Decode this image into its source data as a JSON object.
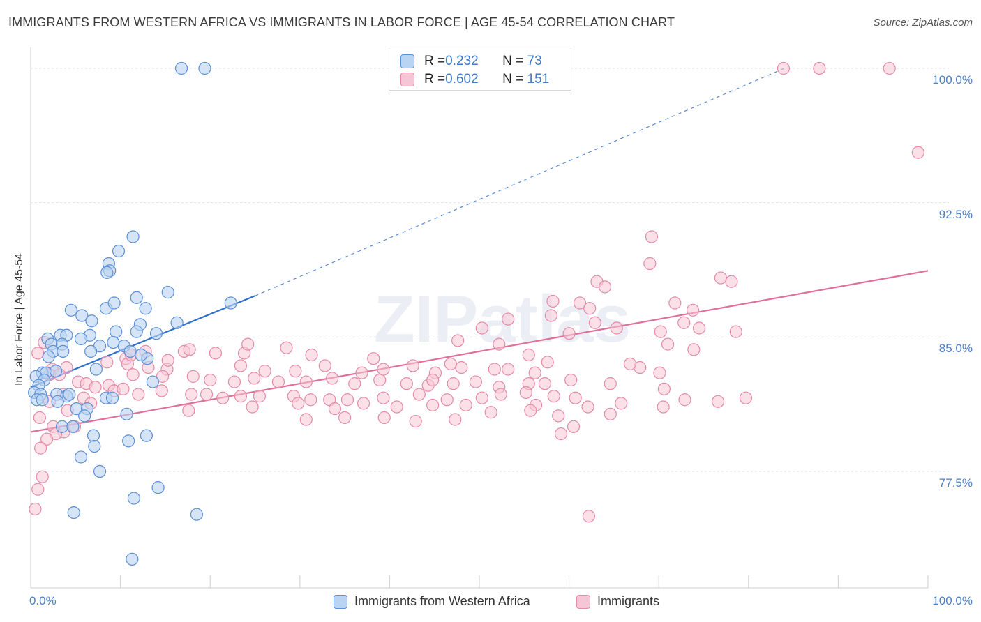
{
  "title": "IMMIGRANTS FROM WESTERN AFRICA VS IMMIGRANTS IN LABOR FORCE | AGE 45-54 CORRELATION CHART",
  "source": "Source: ZipAtlas.com",
  "watermark": "ZIPatlas",
  "colors": {
    "blue_fill": "#b9d3f2",
    "blue_stroke": "#5b8fd6",
    "blue_line": "#2f6fce",
    "pink_fill": "#f7c6d6",
    "pink_stroke": "#e58aa8",
    "pink_line": "#e0709a",
    "grid": "#e3e3e3",
    "tick_label": "#4a7fc8"
  },
  "stats": [
    {
      "r_label": "R = ",
      "r_value": "0.232",
      "n_label": "N = ",
      "n_value": "73",
      "series": "blue"
    },
    {
      "r_label": "R = ",
      "r_value": "0.602",
      "n_label": "N = ",
      "n_value": "151",
      "series": "pink"
    }
  ],
  "chart_data": {
    "type": "scatter",
    "title": "IMMIGRANTS FROM WESTERN AFRICA VS IMMIGRANTS IN LABOR FORCE | AGE 45-54 CORRELATION CHART",
    "xlabel": "",
    "ylabel": "In Labor Force | Age 45-54",
    "xlim": [
      0,
      100
    ],
    "ylim": [
      71.0,
      100.7
    ],
    "x_tick_labels": [
      "0.0%",
      "100.0%"
    ],
    "y_ticks": [
      77.5,
      85.0,
      92.5,
      100.0
    ],
    "y_tick_labels": [
      "77.5%",
      "85.0%",
      "92.5%",
      "100.0%"
    ],
    "legend": [
      "Immigrants from Western Africa",
      "Immigrants"
    ],
    "series": [
      {
        "name": "Immigrants from Western Africa",
        "color": "blue",
        "trend": {
          "x0": 0,
          "y0": 82.2,
          "x1": 25,
          "y1": 87.3,
          "dashed_x1": 84,
          "dashed_y1": 100.0
        },
        "points": [
          [
            16.8,
            100.0
          ],
          [
            19.4,
            100.0
          ],
          [
            11.4,
            90.6
          ],
          [
            8.7,
            89.1
          ],
          [
            8.8,
            88.7
          ],
          [
            8.5,
            88.6
          ],
          [
            9.8,
            89.8
          ],
          [
            15.3,
            87.5
          ],
          [
            22.3,
            86.9
          ],
          [
            11.8,
            87.2
          ],
          [
            8.4,
            86.6
          ],
          [
            9.3,
            86.9
          ],
          [
            12.8,
            86.6
          ],
          [
            4.5,
            86.5
          ],
          [
            5.7,
            86.2
          ],
          [
            6.8,
            85.9
          ],
          [
            12.2,
            85.7
          ],
          [
            9.5,
            85.3
          ],
          [
            11.8,
            85.3
          ],
          [
            3.3,
            85.1
          ],
          [
            4.0,
            85.1
          ],
          [
            6.6,
            85.1
          ],
          [
            5.6,
            84.9
          ],
          [
            1.9,
            84.9
          ],
          [
            2.3,
            84.6
          ],
          [
            3.5,
            84.6
          ],
          [
            7.7,
            84.5
          ],
          [
            10.4,
            84.5
          ],
          [
            2.5,
            84.2
          ],
          [
            3.6,
            84.2
          ],
          [
            6.7,
            84.2
          ],
          [
            11.1,
            84.2
          ],
          [
            2.0,
            83.9
          ],
          [
            13.0,
            83.8
          ],
          [
            1.3,
            83.0
          ],
          [
            1.7,
            83.0
          ],
          [
            2.8,
            83.1
          ],
          [
            7.3,
            83.2
          ],
          [
            0.6,
            82.8
          ],
          [
            1.5,
            82.6
          ],
          [
            13.6,
            82.5
          ],
          [
            0.9,
            82.3
          ],
          [
            0.4,
            81.9
          ],
          [
            1.1,
            81.8
          ],
          [
            2.9,
            81.8
          ],
          [
            4.0,
            81.7
          ],
          [
            4.3,
            81.8
          ],
          [
            8.4,
            81.6
          ],
          [
            9.1,
            81.6
          ],
          [
            0.7,
            81.5
          ],
          [
            1.3,
            81.5
          ],
          [
            3.0,
            81.4
          ],
          [
            5.1,
            81.0
          ],
          [
            6.3,
            81.0
          ],
          [
            10.7,
            80.7
          ],
          [
            3.5,
            80.0
          ],
          [
            4.7,
            80.0
          ],
          [
            7.0,
            79.5
          ],
          [
            10.9,
            79.2
          ],
          [
            12.9,
            79.5
          ],
          [
            7.1,
            78.9
          ],
          [
            5.6,
            78.3
          ],
          [
            7.7,
            77.5
          ],
          [
            14.2,
            76.6
          ],
          [
            11.5,
            76.0
          ],
          [
            4.8,
            75.2
          ],
          [
            18.5,
            75.1
          ],
          [
            11.3,
            72.6
          ],
          [
            16.3,
            85.8
          ],
          [
            14.0,
            85.2
          ],
          [
            9.2,
            84.7
          ],
          [
            12.3,
            84.0
          ],
          [
            6.0,
            80.6
          ]
        ]
      },
      {
        "name": "Immigrants",
        "color": "pink",
        "trend": {
          "x0": 0,
          "y0": 79.7,
          "x1": 100,
          "y1": 88.7
        },
        "points": [
          [
            83.9,
            100.0
          ],
          [
            87.9,
            100.0
          ],
          [
            95.7,
            100.0
          ],
          [
            98.9,
            95.3
          ],
          [
            69.2,
            90.6
          ],
          [
            69.0,
            89.1
          ],
          [
            76.9,
            88.3
          ],
          [
            63.1,
            88.1
          ],
          [
            64.0,
            87.8
          ],
          [
            78.1,
            88.1
          ],
          [
            58.2,
            87.0
          ],
          [
            61.2,
            86.9
          ],
          [
            62.3,
            86.6
          ],
          [
            71.8,
            86.9
          ],
          [
            73.8,
            86.5
          ],
          [
            58.0,
            86.2
          ],
          [
            53.2,
            86.0
          ],
          [
            62.9,
            85.8
          ],
          [
            72.8,
            85.8
          ],
          [
            50.3,
            85.5
          ],
          [
            65.3,
            85.5
          ],
          [
            70.2,
            85.3
          ],
          [
            74.5,
            85.5
          ],
          [
            60.0,
            85.2
          ],
          [
            78.6,
            85.3
          ],
          [
            47.6,
            84.8
          ],
          [
            52.2,
            84.6
          ],
          [
            71.0,
            84.6
          ],
          [
            73.9,
            84.3
          ],
          [
            0.8,
            84.1
          ],
          [
            1.5,
            84.7
          ],
          [
            17.1,
            84.2
          ],
          [
            8.5,
            83.6
          ],
          [
            10.6,
            83.8
          ],
          [
            10.8,
            83.5
          ],
          [
            13.1,
            83.3
          ],
          [
            2.4,
            83.2
          ],
          [
            4.0,
            83.3
          ],
          [
            2.1,
            82.9
          ],
          [
            3.2,
            82.9
          ],
          [
            5.3,
            82.5
          ],
          [
            6.2,
            82.4
          ],
          [
            15.2,
            83.2
          ],
          [
            18.1,
            82.8
          ],
          [
            8.7,
            82.3
          ],
          [
            11.4,
            82.9
          ],
          [
            14.7,
            82.8
          ],
          [
            20.0,
            82.6
          ],
          [
            22.7,
            82.5
          ],
          [
            24.9,
            82.7
          ],
          [
            27.6,
            82.5
          ],
          [
            30.7,
            82.5
          ],
          [
            33.6,
            82.7
          ],
          [
            36.1,
            82.4
          ],
          [
            38.9,
            82.6
          ],
          [
            41.9,
            82.4
          ],
          [
            44.3,
            82.3
          ],
          [
            47.1,
            82.4
          ],
          [
            49.6,
            82.5
          ],
          [
            52.2,
            82.2
          ],
          [
            55.5,
            82.4
          ],
          [
            57.3,
            82.4
          ],
          [
            60.2,
            82.6
          ],
          [
            64.6,
            82.4
          ],
          [
            67.9,
            83.3
          ],
          [
            70.1,
            83.0
          ],
          [
            23.4,
            83.4
          ],
          [
            26.1,
            83.1
          ],
          [
            29.5,
            83.1
          ],
          [
            32.8,
            83.4
          ],
          [
            36.9,
            83.0
          ],
          [
            39.3,
            83.2
          ],
          [
            42.6,
            83.4
          ],
          [
            45.1,
            83.0
          ],
          [
            48.0,
            83.3
          ],
          [
            51.7,
            83.2
          ],
          [
            53.2,
            83.2
          ],
          [
            56.2,
            83.0
          ],
          [
            66.8,
            83.5
          ],
          [
            57.6,
            83.6
          ],
          [
            55.5,
            84.0
          ],
          [
            38.2,
            83.8
          ],
          [
            31.3,
            84.0
          ],
          [
            23.8,
            84.1
          ],
          [
            20.6,
            84.1
          ],
          [
            15.3,
            83.7
          ],
          [
            17.7,
            84.3
          ],
          [
            12.8,
            84.2
          ],
          [
            11.2,
            84.0
          ],
          [
            24.2,
            84.6
          ],
          [
            28.5,
            84.4
          ],
          [
            9.3,
            82.0
          ],
          [
            7.2,
            82.2
          ],
          [
            10.3,
            82.1
          ],
          [
            3.6,
            81.8
          ],
          [
            5.9,
            81.6
          ],
          [
            2.1,
            81.4
          ],
          [
            12.0,
            81.8
          ],
          [
            14.6,
            82.0
          ],
          [
            17.9,
            81.8
          ],
          [
            19.6,
            81.8
          ],
          [
            21.4,
            81.6
          ],
          [
            23.4,
            81.7
          ],
          [
            25.5,
            81.7
          ],
          [
            29.3,
            81.7
          ],
          [
            31.2,
            81.5
          ],
          [
            33.3,
            81.5
          ],
          [
            35.3,
            81.5
          ],
          [
            39.3,
            81.6
          ],
          [
            43.3,
            81.8
          ],
          [
            46.4,
            81.5
          ],
          [
            50.3,
            81.6
          ],
          [
            52.4,
            81.8
          ],
          [
            55.2,
            81.9
          ],
          [
            58.3,
            81.7
          ],
          [
            60.7,
            81.6
          ],
          [
            6.7,
            81.3
          ],
          [
            1.0,
            80.5
          ],
          [
            4.1,
            80.9
          ],
          [
            17.6,
            80.9
          ],
          [
            24.7,
            81.1
          ],
          [
            29.8,
            81.3
          ],
          [
            33.9,
            81.0
          ],
          [
            37.1,
            81.3
          ],
          [
            40.8,
            81.1
          ],
          [
            44.8,
            81.2
          ],
          [
            48.5,
            81.2
          ],
          [
            56.3,
            81.2
          ],
          [
            62.1,
            81.1
          ],
          [
            65.8,
            81.3
          ],
          [
            70.5,
            81.1
          ],
          [
            76.6,
            81.4
          ],
          [
            79.7,
            81.6
          ],
          [
            30.7,
            80.4
          ],
          [
            35.0,
            80.5
          ],
          [
            39.4,
            80.5
          ],
          [
            42.9,
            80.3
          ],
          [
            47.3,
            80.4
          ],
          [
            51.3,
            80.8
          ],
          [
            55.7,
            80.9
          ],
          [
            58.8,
            80.6
          ],
          [
            60.5,
            80.0
          ],
          [
            64.6,
            80.7
          ],
          [
            70.6,
            82.1
          ],
          [
            72.9,
            81.5
          ],
          [
            2.5,
            80.0
          ],
          [
            3.7,
            79.7
          ],
          [
            2.8,
            79.6
          ],
          [
            1.8,
            79.3
          ],
          [
            1.1,
            78.8
          ],
          [
            59.1,
            79.6
          ],
          [
            1.3,
            77.2
          ],
          [
            0.8,
            76.5
          ],
          [
            0.5,
            75.4
          ],
          [
            62.2,
            75.0
          ],
          [
            46.8,
            83.5
          ],
          [
            44.8,
            82.6
          ],
          [
            4.9,
            80.0
          ]
        ]
      }
    ]
  },
  "axis": {
    "ylabel": "In Labor Force | Age 45-54",
    "x_left": "0.0%",
    "x_right": "100.0%"
  },
  "legend": {
    "blue_label": "Immigrants from Western Africa",
    "pink_label": "Immigrants"
  }
}
